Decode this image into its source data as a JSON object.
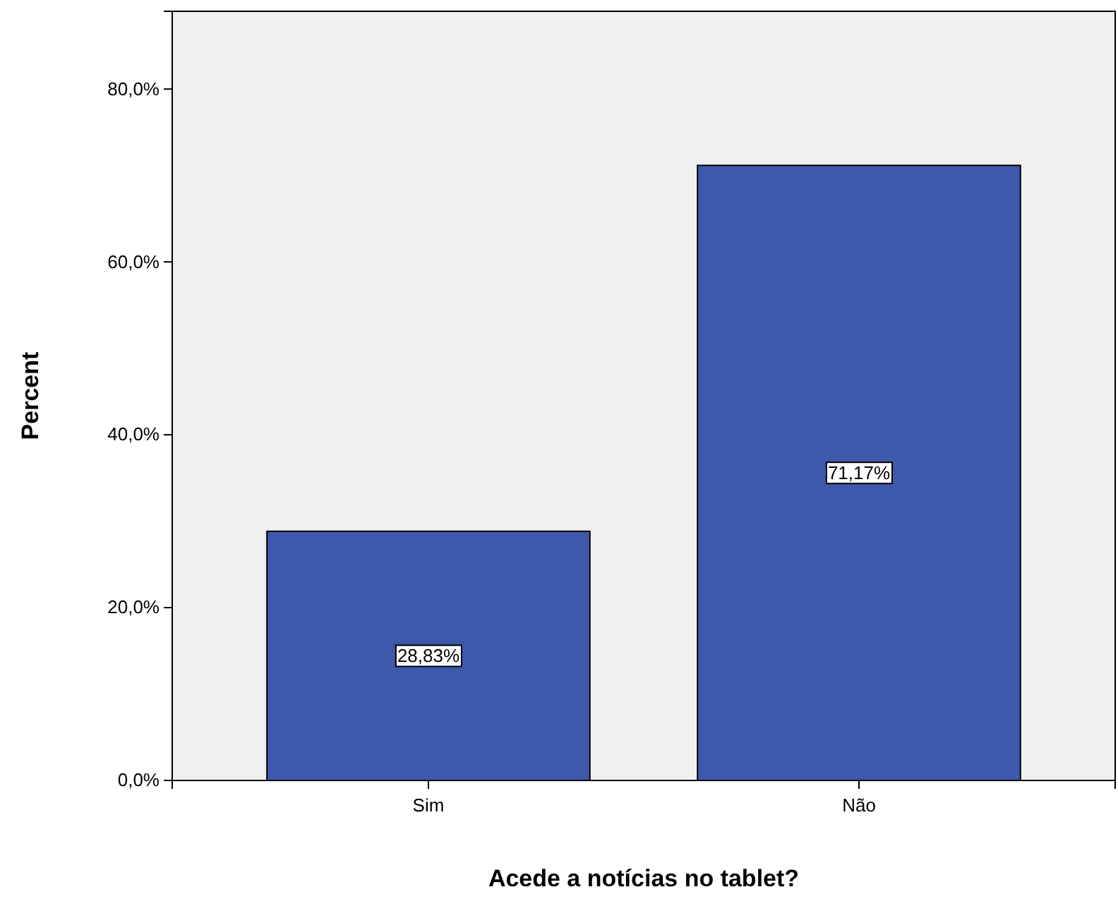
{
  "chart_data": {
    "type": "bar",
    "xlabel": "Acede a notícias no tablet?",
    "ylabel": "Percent",
    "categories": [
      "Sim",
      "Não"
    ],
    "values": [
      28.83,
      71.17
    ],
    "value_labels": [
      "28,83%",
      "71,17%"
    ],
    "color": "#3e58ac",
    "ylim": [
      0,
      89
    ],
    "yticks": [
      {
        "value": 0,
        "label": "0,0%"
      },
      {
        "value": 20,
        "label": "20,0%"
      },
      {
        "value": 40,
        "label": "40,0%"
      },
      {
        "value": 60,
        "label": "60,0%"
      },
      {
        "value": 80,
        "label": "80,0%"
      }
    ],
    "grid": false,
    "legend": false
  }
}
